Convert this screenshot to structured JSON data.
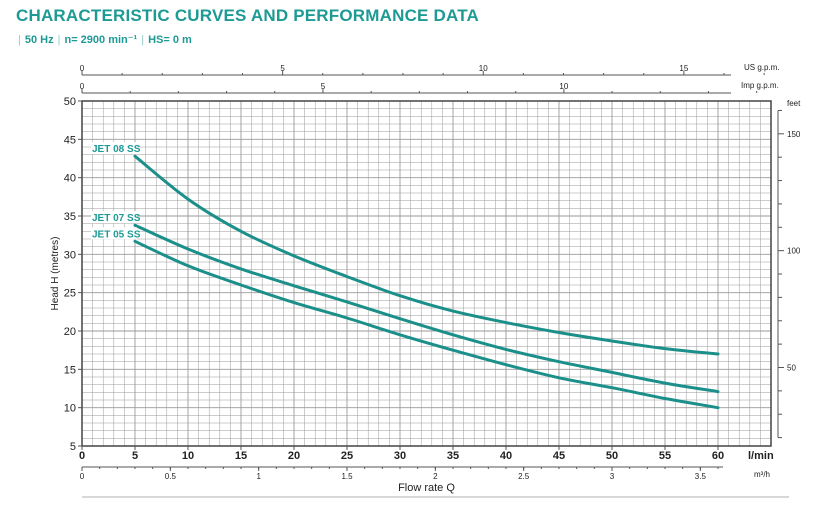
{
  "header": {
    "title": "CHARACTERISTIC CURVES AND PERFORMANCE DATA",
    "conditions": [
      "50 Hz",
      "n= 2900 min⁻¹",
      "HS= 0 m"
    ]
  },
  "colors": {
    "accent": "#1e9a95",
    "curve": "#1b8f8a",
    "grid": "#9a9a9a",
    "plot_border": "#444444"
  },
  "chart_data": {
    "type": "line",
    "title": "",
    "xlabel": "Flow rate Q",
    "ylabel": "Head H (metres)",
    "x_unit": "l/min",
    "xlim": [
      0,
      65
    ],
    "ylim": [
      5,
      50
    ],
    "xticks": [
      0,
      5,
      10,
      15,
      20,
      25,
      30,
      35,
      40,
      45,
      50,
      55,
      60
    ],
    "yticks": [
      5,
      10,
      15,
      20,
      25,
      30,
      35,
      40,
      45,
      50
    ],
    "grid": true,
    "secondary_axes": {
      "top_us": {
        "label": "US g.p.m.",
        "ticks": [
          0,
          5,
          10,
          15
        ]
      },
      "top_imp": {
        "label": "Imp g.p.m.",
        "ticks": [
          0,
          5,
          10
        ]
      },
      "bottom_m3h": {
        "label": "m³/h",
        "ticks": [
          "0",
          "0.5",
          "1",
          "1.5",
          "2",
          "2.5",
          "3",
          "3.5"
        ]
      },
      "right_feet": {
        "label": "feet",
        "ticks": [
          50,
          100,
          150
        ]
      }
    },
    "series": [
      {
        "name": "JET 08 SS",
        "points": [
          [
            5,
            42.8
          ],
          [
            10,
            37.2
          ],
          [
            15,
            33
          ],
          [
            20,
            29.8
          ],
          [
            25,
            27.1
          ],
          [
            30,
            24.6
          ],
          [
            35,
            22.6
          ],
          [
            40,
            21.1
          ],
          [
            45,
            19.8
          ],
          [
            50,
            18.7
          ],
          [
            55,
            17.7
          ],
          [
            60,
            17.0
          ]
        ]
      },
      {
        "name": "JET 07 SS",
        "points": [
          [
            5,
            33.8
          ],
          [
            10,
            30.7
          ],
          [
            15,
            28.1
          ],
          [
            20,
            25.9
          ],
          [
            25,
            23.8
          ],
          [
            30,
            21.6
          ],
          [
            35,
            19.5
          ],
          [
            40,
            17.6
          ],
          [
            45,
            16
          ],
          [
            50,
            14.6
          ],
          [
            55,
            13.2
          ],
          [
            60,
            12.1
          ]
        ]
      },
      {
        "name": "JET 05 SS",
        "points": [
          [
            5,
            31.7
          ],
          [
            10,
            28.5
          ],
          [
            15,
            26
          ],
          [
            20,
            23.7
          ],
          [
            25,
            21.7
          ],
          [
            30,
            19.5
          ],
          [
            35,
            17.5
          ],
          [
            40,
            15.6
          ],
          [
            45,
            13.9
          ],
          [
            50,
            12.6
          ],
          [
            55,
            11.2
          ],
          [
            60,
            10.0
          ]
        ]
      }
    ]
  }
}
